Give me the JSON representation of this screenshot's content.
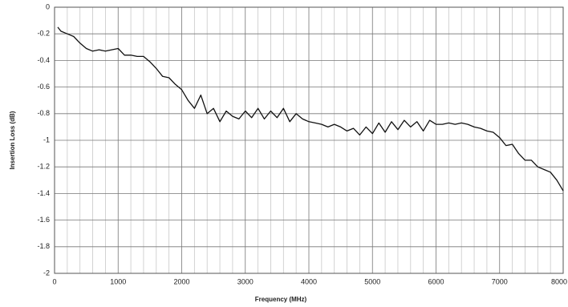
{
  "chart_data": {
    "type": "line",
    "x_label": "Frequency (MHz)",
    "y_label": "Insertion Loss (dB)",
    "x": [
      50,
      100,
      200,
      300,
      400,
      500,
      600,
      700,
      800,
      900,
      1000,
      1100,
      1200,
      1300,
      1400,
      1500,
      1600,
      1700,
      1800,
      1900,
      2000,
      2100,
      2200,
      2300,
      2400,
      2500,
      2600,
      2700,
      2800,
      2900,
      3000,
      3100,
      3200,
      3300,
      3400,
      3500,
      3600,
      3700,
      3800,
      3900,
      4000,
      4100,
      4200,
      4300,
      4400,
      4500,
      4600,
      4700,
      4800,
      4900,
      5000,
      5100,
      5200,
      5300,
      5400,
      5500,
      5600,
      5700,
      5800,
      5900,
      6000,
      6100,
      6200,
      6300,
      6400,
      6500,
      6600,
      6700,
      6800,
      6900,
      7000,
      7100,
      7200,
      7300,
      7400,
      7500,
      7600,
      7700,
      7800,
      7900,
      8000
    ],
    "series": [
      {
        "color": "#111111",
        "values": [
          -0.15,
          -0.18,
          -0.2,
          -0.22,
          -0.27,
          -0.31,
          -0.33,
          -0.32,
          -0.33,
          -0.32,
          -0.31,
          -0.36,
          -0.36,
          -0.37,
          -0.37,
          -0.41,
          -0.46,
          -0.52,
          -0.53,
          -0.58,
          -0.62,
          -0.7,
          -0.76,
          -0.66,
          -0.8,
          -0.76,
          -0.86,
          -0.78,
          -0.82,
          -0.84,
          -0.78,
          -0.83,
          -0.76,
          -0.84,
          -0.78,
          -0.83,
          -0.76,
          -0.86,
          -0.8,
          -0.84,
          -0.86,
          -0.87,
          -0.88,
          -0.9,
          -0.88,
          -0.9,
          -0.93,
          -0.91,
          -0.96,
          -0.9,
          -0.95,
          -0.87,
          -0.94,
          -0.86,
          -0.92,
          -0.85,
          -0.9,
          -0.86,
          -0.93,
          -0.85,
          -0.88,
          -0.88,
          -0.87,
          -0.88,
          -0.87,
          -0.88,
          -0.9,
          -0.91,
          -0.93,
          -0.94,
          -0.98,
          -1.04,
          -1.03,
          -1.1,
          -1.15,
          -1.15,
          -1.2,
          -1.22,
          -1.24,
          -1.3,
          -1.38
        ]
      }
    ],
    "xlim": [
      0,
      8000
    ],
    "xticks": [
      0,
      1000,
      2000,
      3000,
      4000,
      5000,
      6000,
      7000,
      8000
    ],
    "xminorticks": [
      200,
      400,
      600,
      800,
      1200,
      1400,
      1600,
      1800,
      2200,
      2400,
      2600,
      2800,
      3200,
      3400,
      3600,
      3800,
      4200,
      4400,
      4600,
      4800,
      5200,
      5400,
      5600,
      5800,
      6200,
      6400,
      6600,
      6800,
      7200,
      7400,
      7600,
      7800
    ],
    "ylim": [
      -2,
      0
    ],
    "yticks": [
      0,
      -0.2,
      -0.4,
      -0.6,
      -0.8,
      -1,
      -1.2,
      -1.4,
      -1.6,
      -1.8,
      -2
    ],
    "grid": true
  }
}
